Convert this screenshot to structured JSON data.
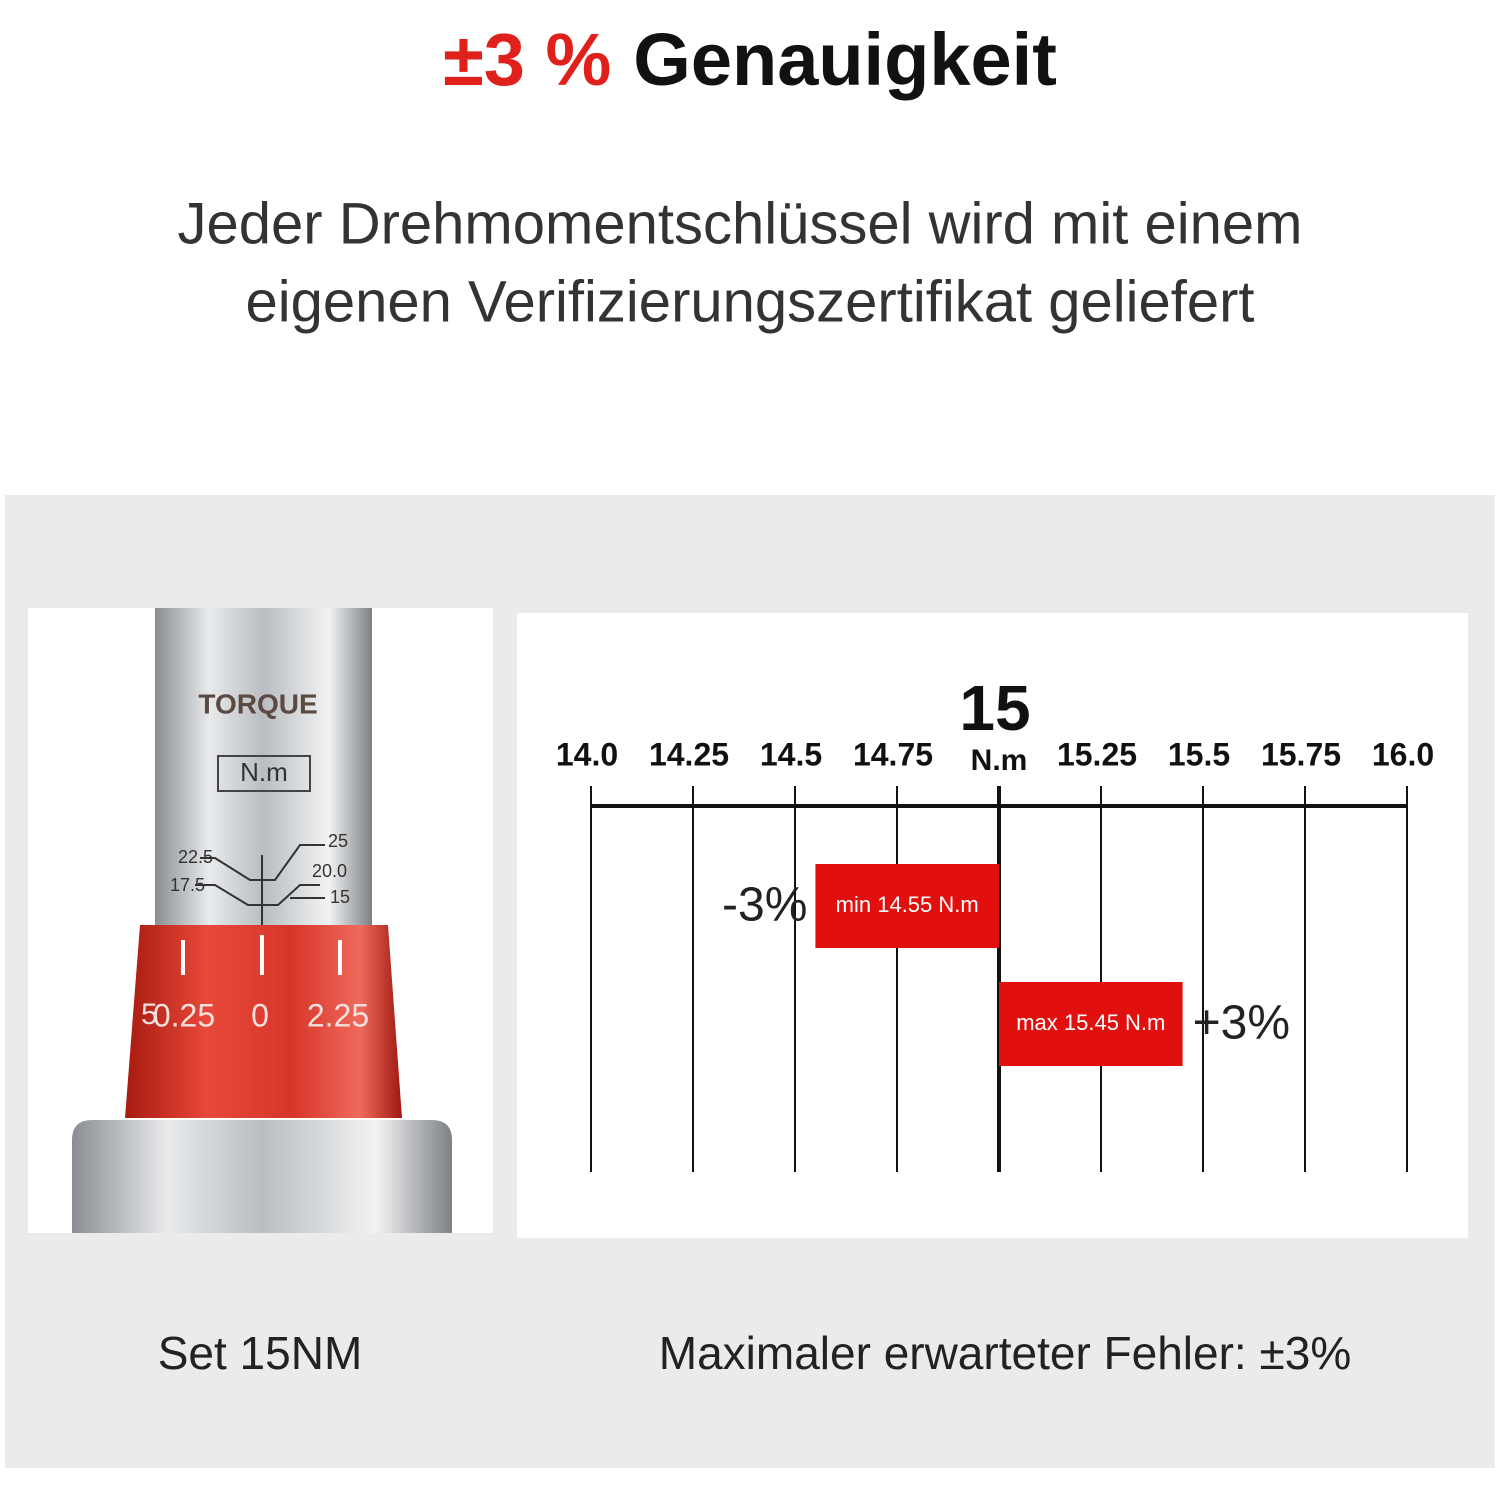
{
  "header": {
    "title_accent": "±3 %",
    "title": "Genauigkeit",
    "subtitle": [
      "Jeder Drehmomentschlüssel wird mit einem",
      "eigenen Verifizierungszertifikat geliefert"
    ]
  },
  "photo": {
    "brand": "TORQUE",
    "unit": "N.m",
    "scale_left": [
      "22.5",
      "17.5"
    ],
    "scale_right": [
      "25",
      "20.0",
      "15"
    ],
    "collar": [
      "5",
      "0.25",
      "0",
      "2.25"
    ]
  },
  "scale": {
    "unit": "N.m",
    "xlim": [
      14,
      16
    ],
    "ticks": [
      {
        "value": 14,
        "label": "14.0"
      },
      14.25,
      14.5,
      14.75,
      15,
      15.25,
      15.5,
      15.75,
      {
        "value": 16,
        "label": "16.0"
      }
    ],
    "bars": [
      {
        "value": 14.55,
        "label": "min 14.55 N.m",
        "tag": "-3%"
      },
      {
        "value": 15.45,
        "label": "max 15.45 N.m",
        "tag": "+3%"
      }
    ]
  },
  "captions": {
    "left": "Set 15NM",
    "right": "Maximaler erwarteter Fehler: ±3%"
  }
}
